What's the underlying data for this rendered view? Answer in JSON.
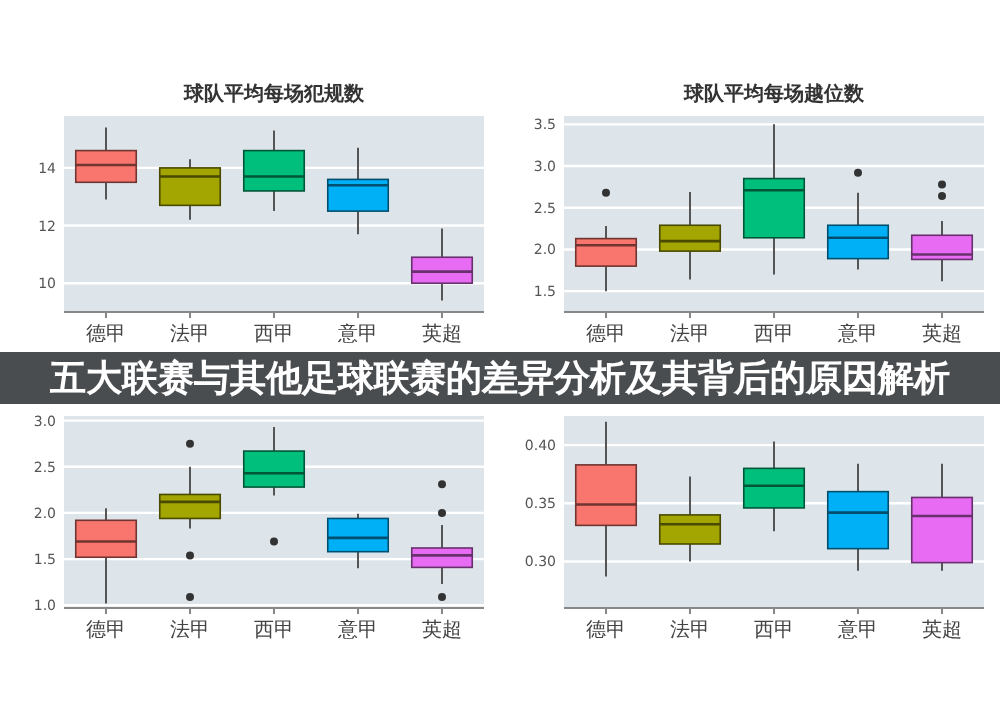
{
  "chart_data": [
    {
      "type": "box",
      "title": "球队平均每场犯规数",
      "categories": [
        "德甲",
        "法甲",
        "西甲",
        "意甲",
        "英超"
      ],
      "colors": [
        "#f8766d",
        "#a3a500",
        "#00bf7d",
        "#00b0f6",
        "#e76bf3"
      ],
      "grid": "y",
      "ylim": [
        9.0,
        15.8
      ],
      "yticks": [
        10,
        12,
        14
      ],
      "boxes": [
        {
          "low": 12.9,
          "q1": 13.5,
          "median": 14.1,
          "q3": 14.6,
          "high": 15.4
        },
        {
          "low": 12.2,
          "q1": 12.7,
          "median": 13.7,
          "q3": 14.0,
          "high": 14.3
        },
        {
          "low": 12.5,
          "q1": 13.2,
          "median": 13.7,
          "q3": 14.6,
          "high": 15.3
        },
        {
          "low": 11.7,
          "q1": 12.5,
          "median": 13.4,
          "q3": 13.6,
          "high": 14.7
        },
        {
          "low": 9.4,
          "q1": 10.0,
          "median": 10.4,
          "q3": 10.9,
          "high": 11.9
        }
      ]
    },
    {
      "type": "box",
      "title": "球队平均每场越位数",
      "categories": [
        "德甲",
        "法甲",
        "西甲",
        "意甲",
        "英超"
      ],
      "colors": [
        "#f8766d",
        "#a3a500",
        "#00bf7d",
        "#00b0f6",
        "#e76bf3"
      ],
      "grid": "y",
      "ylim": [
        1.25,
        3.6
      ],
      "yticks": [
        1.5,
        {
          "value": 2,
          "label": "2.0"
        },
        2.5,
        {
          "value": 3,
          "label": "3.0"
        },
        3.5
      ],
      "boxes": [
        {
          "low": 1.5,
          "q1": 1.8,
          "median": 2.05,
          "q3": 2.13,
          "high": 2.28,
          "outliers": [
            2.68
          ]
        },
        {
          "low": 1.64,
          "q1": 1.98,
          "median": 2.1,
          "q3": 2.29,
          "high": 2.69
        },
        {
          "low": 1.7,
          "q1": 2.14,
          "median": 2.71,
          "q3": 2.85,
          "high": 3.5
        },
        {
          "low": 1.76,
          "q1": 1.89,
          "median": 2.14,
          "q3": 2.29,
          "high": 2.68,
          "outliers": [
            2.92
          ]
        },
        {
          "low": 1.62,
          "q1": 1.88,
          "median": 1.94,
          "q3": 2.17,
          "high": 2.34,
          "outliers": [
            2.78,
            2.64
          ]
        }
      ]
    },
    {
      "type": "box",
      "categories": [
        "德甲",
        "法甲",
        "西甲",
        "意甲",
        "英超"
      ],
      "colors": [
        "#f8766d",
        "#a3a500",
        "#00bf7d",
        "#00b0f6",
        "#e76bf3"
      ],
      "grid": "y",
      "ylim": [
        0.97,
        3.05
      ],
      "yticks": [
        {
          "value": 1,
          "label": "1.0"
        },
        1.5,
        {
          "value": 2,
          "label": "2.0"
        },
        2.5,
        {
          "value": 3,
          "label": "3.0"
        }
      ],
      "boxes": [
        {
          "low": 1.02,
          "q1": 1.52,
          "median": 1.69,
          "q3": 1.92,
          "high": 2.05
        },
        {
          "low": 1.83,
          "q1": 1.94,
          "median": 2.12,
          "q3": 2.2,
          "high": 2.5,
          "outliers": [
            2.75,
            1.54,
            1.09
          ]
        },
        {
          "low": 2.19,
          "q1": 2.28,
          "median": 2.43,
          "q3": 2.67,
          "high": 2.93,
          "outliers": [
            1.69
          ]
        },
        {
          "low": 1.4,
          "q1": 1.58,
          "median": 1.73,
          "q3": 1.94,
          "high": 1.99
        },
        {
          "low": 1.23,
          "q1": 1.41,
          "median": 1.54,
          "q3": 1.62,
          "high": 1.87,
          "outliers": [
            2.31,
            2.0,
            1.09
          ]
        }
      ]
    },
    {
      "type": "box",
      "categories": [
        "德甲",
        "法甲",
        "西甲",
        "意甲",
        "英超"
      ],
      "colors": [
        "#f8766d",
        "#a3a500",
        "#00bf7d",
        "#00b0f6",
        "#e76bf3"
      ],
      "grid": "y",
      "ylim": [
        0.26,
        0.425
      ],
      "yticks": [
        {
          "value": 0.3,
          "label": "0.30"
        },
        {
          "value": 0.35,
          "label": "0.35"
        },
        {
          "value": 0.4,
          "label": "0.40"
        }
      ],
      "boxes": [
        {
          "low": 0.287,
          "q1": 0.331,
          "median": 0.349,
          "q3": 0.383,
          "high": 0.42
        },
        {
          "low": 0.3,
          "q1": 0.315,
          "median": 0.332,
          "q3": 0.34,
          "high": 0.373
        },
        {
          "low": 0.326,
          "q1": 0.346,
          "median": 0.365,
          "q3": 0.38,
          "high": 0.403
        },
        {
          "low": 0.292,
          "q1": 0.311,
          "median": 0.342,
          "q3": 0.36,
          "high": 0.384
        },
        {
          "low": 0.292,
          "q1": 0.299,
          "median": 0.339,
          "q3": 0.355,
          "high": 0.384
        }
      ]
    },
    {
      "type": "other",
      "title": "五大联赛与其他足球联赛的差异分析及其背后的原因解析"
    }
  ]
}
